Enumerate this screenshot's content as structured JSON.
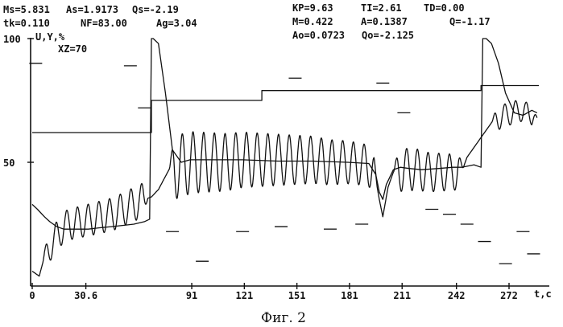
{
  "header": {
    "row1": [
      "Ms=5.831",
      "As=1.9173",
      "Qs=-2.19"
    ],
    "row2": [
      "tk=0.110",
      "NF=83.00",
      "Ag=3.04"
    ],
    "right_row1": [
      "KP=9.63",
      "TI=2.61",
      "TD=0.00"
    ],
    "right_row2": [
      "M=0.422",
      "A=0.1387",
      "Q=-1.17"
    ],
    "right_row3": [
      "Ao=0.0723",
      "Qo=-2.125"
    ]
  },
  "caption": "Фиг. 2",
  "chart_data": {
    "type": "line",
    "ylabel": "U,Y,%",
    "xlabel": "t,c",
    "annotation": "XZ=70",
    "ylim": [
      0,
      100
    ],
    "xlim": [
      0,
      289
    ],
    "y_tick_labels": [
      "100",
      "50"
    ],
    "y_ticks": [
      100,
      50
    ],
    "x_tick_labels": [
      "0",
      "30.6",
      "91",
      "121",
      "151",
      "181",
      "211",
      "242",
      "272"
    ],
    "x_ticks": [
      0,
      30.6,
      91,
      121,
      151,
      181,
      211,
      242,
      272
    ],
    "colors": {
      "line": "#111111",
      "axis": "#111111"
    },
    "series": [
      {
        "kind": "setpoint",
        "x": [
          0,
          68,
          68,
          131,
          131,
          256,
          256,
          289
        ],
        "y": [
          62,
          62,
          75,
          75,
          79,
          79,
          81,
          81
        ]
      },
      {
        "kind": "control",
        "x": [
          0,
          3,
          7,
          10,
          14,
          18,
          22,
          27,
          32,
          38,
          45,
          52,
          58,
          64,
          67,
          68,
          69,
          72,
          76,
          80,
          85,
          90,
          100,
          120,
          140,
          160,
          180,
          192,
          196,
          198,
          200,
          202,
          206,
          210,
          215,
          222,
          232,
          240,
          245,
          252,
          256,
          257,
          259,
          262,
          266,
          270,
          275,
          280,
          285,
          288
        ],
        "y": [
          33,
          31,
          28,
          26,
          24,
          23,
          23,
          23,
          23,
          23.5,
          24,
          24.5,
          25,
          26,
          27,
          100,
          100,
          98,
          78,
          55,
          50,
          51,
          51,
          51,
          50.5,
          50.5,
          50,
          49.5,
          45,
          38,
          35,
          41,
          47,
          48,
          47.5,
          47,
          47.5,
          48,
          48,
          49,
          48,
          100,
          100,
          98,
          90,
          78,
          70,
          69,
          71,
          70
        ]
      },
      {
        "kind": "output_oscillating",
        "x": [
          0,
          4,
          7,
          10,
          14,
          18,
          22,
          28,
          34,
          40,
          46,
          52,
          58,
          64,
          68,
          72,
          75,
          78,
          82,
          86,
          92,
          100,
          110,
          120,
          130,
          140,
          150,
          160,
          170,
          180,
          190,
          195,
          198,
          200,
          203,
          206,
          210,
          215,
          220,
          226,
          232,
          238,
          242,
          246,
          248,
          252,
          256,
          258,
          262,
          266,
          270,
          274,
          278,
          282,
          286,
          288
        ],
        "y": [
          6,
          4,
          12,
          16,
          20,
          24,
          25,
          26,
          27,
          28,
          29,
          31,
          33,
          35,
          36,
          39,
          43,
          47,
          48,
          49,
          50,
          50,
          50,
          51,
          51,
          51,
          51,
          51,
          50,
          50,
          49,
          47,
          35,
          28,
          40,
          46,
          47,
          47,
          47,
          46,
          46,
          46,
          46,
          48,
          52,
          56,
          60,
          62,
          66,
          68,
          69,
          70,
          71,
          70,
          69,
          68
        ]
      }
    ],
    "oscillation": {
      "period": 6.1,
      "segments": [
        {
          "from": 6,
          "to": 66,
          "amp_start": 6,
          "amp_end": 7
        },
        {
          "from": 78,
          "to": 197,
          "amp_start": 13,
          "amp_end": 8
        },
        {
          "from": 206,
          "to": 246,
          "amp_start": 9,
          "amp_end": 7
        },
        {
          "from": 262,
          "to": 288,
          "amp_start": 5,
          "amp_end": 4
        }
      ]
    },
    "stray_marks": [
      {
        "x": 2,
        "y": 90
      },
      {
        "x": 56,
        "y": 89
      },
      {
        "x": 64,
        "y": 72
      },
      {
        "x": 150,
        "y": 84
      },
      {
        "x": 200,
        "y": 82
      },
      {
        "x": 212,
        "y": 70
      },
      {
        "x": 228,
        "y": 31
      },
      {
        "x": 238,
        "y": 29
      },
      {
        "x": 248,
        "y": 25
      },
      {
        "x": 258,
        "y": 18
      },
      {
        "x": 270,
        "y": 9
      },
      {
        "x": 280,
        "y": 22
      },
      {
        "x": 286,
        "y": 13
      },
      {
        "x": 80,
        "y": 22
      },
      {
        "x": 97,
        "y": 10
      },
      {
        "x": 120,
        "y": 22
      },
      {
        "x": 142,
        "y": 24
      },
      {
        "x": 170,
        "y": 23
      },
      {
        "x": 188,
        "y": 25
      }
    ]
  }
}
